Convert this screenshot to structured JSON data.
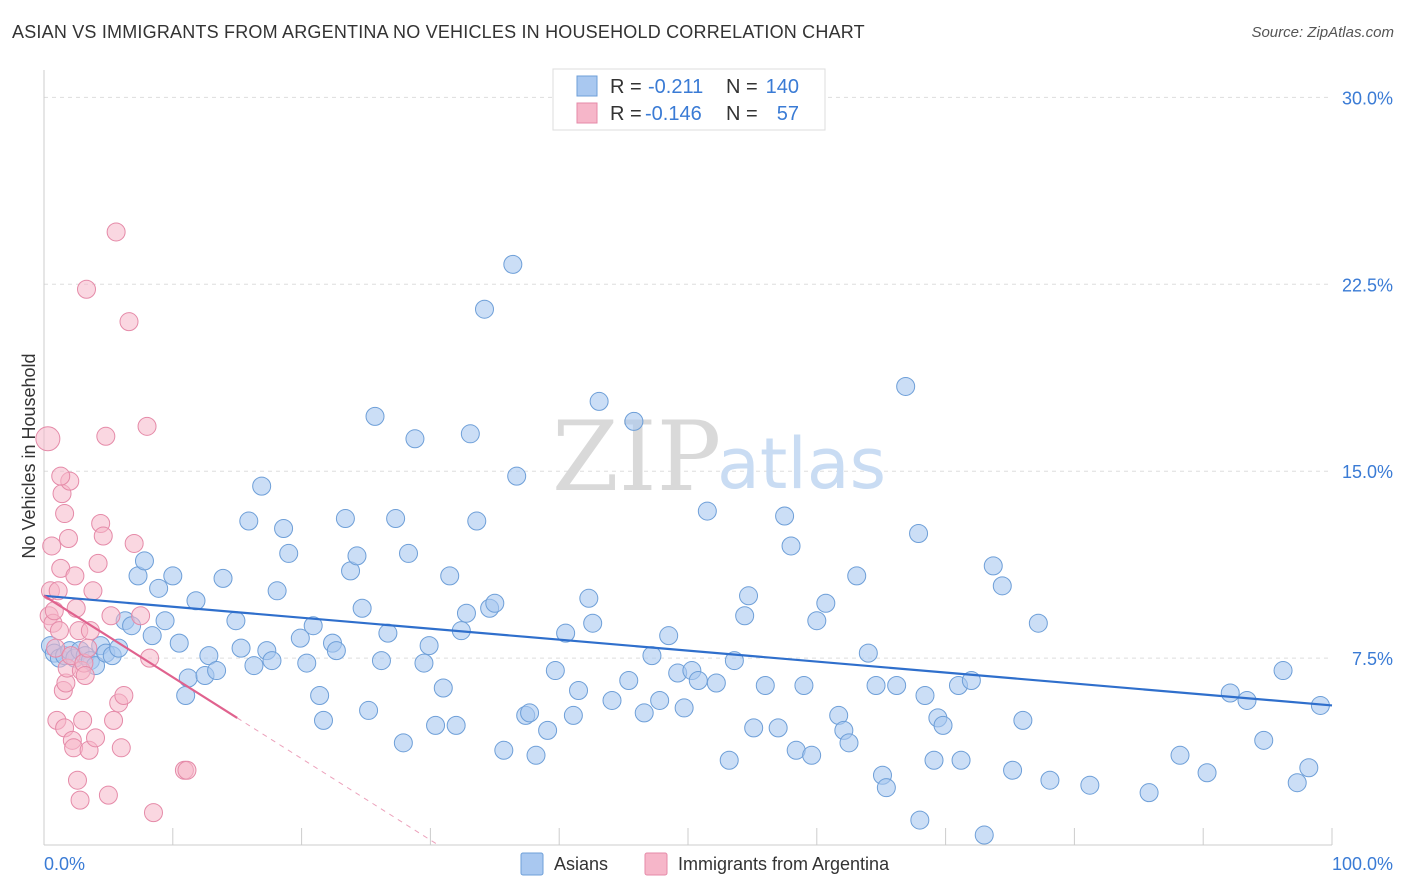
{
  "header": {
    "title": "ASIAN VS IMMIGRANTS FROM ARGENTINA NO VEHICLES IN HOUSEHOLD CORRELATION CHART",
    "source": "Source: ZipAtlas.com"
  },
  "watermark": {
    "zip": "ZIP",
    "atlas": "atlas"
  },
  "legend_box": {
    "asians": {
      "r_label": "R =",
      "r_value": "-0.211",
      "n_label": "N =",
      "n_value": "140"
    },
    "argentina": {
      "r_label": "R =",
      "r_value": "-0.146",
      "n_label": "N =",
      "n_value": "57"
    }
  },
  "colors": {
    "asians_fill": "#a9c8f0",
    "asians_stroke": "#6e9fd8",
    "asians_line": "#2f6fcc",
    "argentina_fill": "#f6b6c9",
    "argentina_stroke": "#e58aa8",
    "argentina_line": "#e0628e",
    "tick": "#3a7bd5",
    "grid": "#dddddd"
  },
  "chart_data": {
    "type": "scatter",
    "title": "ASIAN VS IMMIGRANTS FROM ARGENTINA NO VEHICLES IN HOUSEHOLD CORRELATION CHART",
    "ylabel": "No Vehicles in Household",
    "xlabel": "",
    "xlim": [
      0,
      100
    ],
    "ylim": [
      0,
      31.5
    ],
    "grid": true,
    "legend_position": "bottom",
    "y_ticks": [
      {
        "value": 7.5,
        "label": "7.5%"
      },
      {
        "value": 15.0,
        "label": "15.0%"
      },
      {
        "value": 22.5,
        "label": "22.5%"
      },
      {
        "value": 30.0,
        "label": "30.0%"
      }
    ],
    "x_tick_labels": {
      "min": "0.0%",
      "max": "100.0%"
    },
    "series": [
      {
        "name": "Asians",
        "trend": {
          "x0": 0,
          "y0": 10.0,
          "x1": 100,
          "y1": 5.6
        },
        "points": [
          [
            0.5,
            8.0
          ],
          [
            0.8,
            7.7
          ],
          [
            1.2,
            7.5
          ],
          [
            1.6,
            7.6
          ],
          [
            2.0,
            7.8
          ],
          [
            2.4,
            7.5
          ],
          [
            2.8,
            7.8
          ],
          [
            3.2,
            7.6
          ],
          [
            3.6,
            7.4
          ],
          [
            4.0,
            7.2
          ],
          [
            4.4,
            8.0
          ],
          [
            4.8,
            7.7
          ],
          [
            5.3,
            7.6
          ],
          [
            5.8,
            7.9
          ],
          [
            6.3,
            9.0
          ],
          [
            6.8,
            8.8
          ],
          [
            7.3,
            10.8
          ],
          [
            7.8,
            11.4
          ],
          [
            8.4,
            8.4
          ],
          [
            8.9,
            10.3
          ],
          [
            9.4,
            9.0
          ],
          [
            10.0,
            10.8
          ],
          [
            10.5,
            8.1
          ],
          [
            11.0,
            6.0
          ],
          [
            11.2,
            6.7
          ],
          [
            11.8,
            9.8
          ],
          [
            12.5,
            6.8
          ],
          [
            12.8,
            7.6
          ],
          [
            13.4,
            7.0
          ],
          [
            13.9,
            10.7
          ],
          [
            14.9,
            9.0
          ],
          [
            15.3,
            7.9
          ],
          [
            15.9,
            13.0
          ],
          [
            16.3,
            7.2
          ],
          [
            16.9,
            14.4
          ],
          [
            17.3,
            7.8
          ],
          [
            17.7,
            7.4
          ],
          [
            18.1,
            10.2
          ],
          [
            18.6,
            12.7
          ],
          [
            19.0,
            11.7
          ],
          [
            19.9,
            8.3
          ],
          [
            20.4,
            7.3
          ],
          [
            20.9,
            8.8
          ],
          [
            21.4,
            6.0
          ],
          [
            21.7,
            5.0
          ],
          [
            22.4,
            8.1
          ],
          [
            22.7,
            7.8
          ],
          [
            23.4,
            13.1
          ],
          [
            23.8,
            11.0
          ],
          [
            24.3,
            11.6
          ],
          [
            24.7,
            9.5
          ],
          [
            25.2,
            5.4
          ],
          [
            25.7,
            17.2
          ],
          [
            26.2,
            7.4
          ],
          [
            26.7,
            8.5
          ],
          [
            27.3,
            13.1
          ],
          [
            27.9,
            4.1
          ],
          [
            28.3,
            11.7
          ],
          [
            28.8,
            16.3
          ],
          [
            29.5,
            7.3
          ],
          [
            29.9,
            8.0
          ],
          [
            30.4,
            4.8
          ],
          [
            31.0,
            6.3
          ],
          [
            31.5,
            10.8
          ],
          [
            32.0,
            4.8
          ],
          [
            32.4,
            8.6
          ],
          [
            32.8,
            9.3
          ],
          [
            33.1,
            16.5
          ],
          [
            33.6,
            13.0
          ],
          [
            34.2,
            21.5
          ],
          [
            34.6,
            9.5
          ],
          [
            35.0,
            9.7
          ],
          [
            35.7,
            3.8
          ],
          [
            36.4,
            23.3
          ],
          [
            36.7,
            14.8
          ],
          [
            37.4,
            5.2
          ],
          [
            37.7,
            5.3
          ],
          [
            38.2,
            3.6
          ],
          [
            39.1,
            4.6
          ],
          [
            39.7,
            7.0
          ],
          [
            40.5,
            8.5
          ],
          [
            41.1,
            5.2
          ],
          [
            41.5,
            6.2
          ],
          [
            42.3,
            9.9
          ],
          [
            42.6,
            8.9
          ],
          [
            43.1,
            17.8
          ],
          [
            44.1,
            5.8
          ],
          [
            45.4,
            6.6
          ],
          [
            45.8,
            17.0
          ],
          [
            46.6,
            5.3
          ],
          [
            47.2,
            7.6
          ],
          [
            47.8,
            5.8
          ],
          [
            48.5,
            8.4
          ],
          [
            49.2,
            6.9
          ],
          [
            49.7,
            5.5
          ],
          [
            50.3,
            7.0
          ],
          [
            50.8,
            6.6
          ],
          [
            51.5,
            13.4
          ],
          [
            52.2,
            6.5
          ],
          [
            53.2,
            3.4
          ],
          [
            53.6,
            7.4
          ],
          [
            54.4,
            9.2
          ],
          [
            54.7,
            10.0
          ],
          [
            55.1,
            4.7
          ],
          [
            56.0,
            6.4
          ],
          [
            57.0,
            4.7
          ],
          [
            57.5,
            13.2
          ],
          [
            58.0,
            12.0
          ],
          [
            58.4,
            3.8
          ],
          [
            59.0,
            6.4
          ],
          [
            59.6,
            3.6
          ],
          [
            60.0,
            9.0
          ],
          [
            60.7,
            9.7
          ],
          [
            61.7,
            5.2
          ],
          [
            62.1,
            4.6
          ],
          [
            62.5,
            4.1
          ],
          [
            63.1,
            10.8
          ],
          [
            64.0,
            7.7
          ],
          [
            64.6,
            6.4
          ],
          [
            65.1,
            2.8
          ],
          [
            65.4,
            2.3
          ],
          [
            66.2,
            6.4
          ],
          [
            66.9,
            18.4
          ],
          [
            67.9,
            12.5
          ],
          [
            68.0,
            1.0
          ],
          [
            68.4,
            6.0
          ],
          [
            69.1,
            3.4
          ],
          [
            69.4,
            5.1
          ],
          [
            69.8,
            4.8
          ],
          [
            71.0,
            6.4
          ],
          [
            71.2,
            3.4
          ],
          [
            72.0,
            6.6
          ],
          [
            73.0,
            0.4
          ],
          [
            73.7,
            11.2
          ],
          [
            74.4,
            10.4
          ],
          [
            75.2,
            3.0
          ],
          [
            76.0,
            5.0
          ],
          [
            77.2,
            8.9
          ],
          [
            78.1,
            2.6
          ],
          [
            81.2,
            2.4
          ],
          [
            85.8,
            2.1
          ],
          [
            88.2,
            3.6
          ],
          [
            90.3,
            2.9
          ],
          [
            92.1,
            6.1
          ],
          [
            93.4,
            5.8
          ],
          [
            94.7,
            4.2
          ],
          [
            96.2,
            7.0
          ],
          [
            97.3,
            2.5
          ],
          [
            98.2,
            3.1
          ],
          [
            99.1,
            5.6
          ]
        ]
      },
      {
        "name": "Immigrants from Argentina",
        "trend": {
          "x0": 0,
          "y0": 10.0,
          "x1": 15,
          "y1": 5.1
        },
        "points": [
          [
            0.3,
            16.3
          ],
          [
            0.4,
            9.2
          ],
          [
            0.5,
            10.2
          ],
          [
            0.6,
            12.0
          ],
          [
            0.7,
            8.9
          ],
          [
            0.8,
            9.4
          ],
          [
            0.9,
            7.9
          ],
          [
            1.0,
            5.0
          ],
          [
            1.1,
            10.2
          ],
          [
            1.2,
            8.6
          ],
          [
            1.3,
            11.1
          ],
          [
            1.4,
            14.1
          ],
          [
            1.5,
            6.2
          ],
          [
            1.6,
            4.7
          ],
          [
            1.7,
            6.5
          ],
          [
            1.8,
            7.1
          ],
          [
            1.9,
            12.3
          ],
          [
            2.0,
            14.6
          ],
          [
            2.1,
            7.6
          ],
          [
            2.2,
            4.2
          ],
          [
            2.3,
            3.9
          ],
          [
            2.4,
            10.8
          ],
          [
            2.5,
            9.5
          ],
          [
            2.6,
            2.6
          ],
          [
            2.7,
            8.6
          ],
          [
            2.8,
            1.8
          ],
          [
            2.9,
            7.0
          ],
          [
            3.0,
            5.0
          ],
          [
            3.1,
            7.3
          ],
          [
            3.2,
            6.8
          ],
          [
            3.3,
            22.3
          ],
          [
            3.4,
            7.9
          ],
          [
            3.5,
            3.8
          ],
          [
            3.6,
            8.6
          ],
          [
            3.8,
            10.2
          ],
          [
            4.0,
            4.3
          ],
          [
            4.2,
            11.3
          ],
          [
            4.4,
            12.9
          ],
          [
            4.6,
            12.4
          ],
          [
            4.8,
            16.4
          ],
          [
            5.0,
            2.0
          ],
          [
            5.2,
            9.2
          ],
          [
            5.4,
            5.0
          ],
          [
            5.6,
            24.6
          ],
          [
            5.8,
            5.7
          ],
          [
            6.0,
            3.9
          ],
          [
            6.2,
            6.0
          ],
          [
            6.6,
            21.0
          ],
          [
            7.0,
            12.1
          ],
          [
            7.5,
            9.2
          ],
          [
            8.0,
            16.8
          ],
          [
            8.2,
            7.5
          ],
          [
            8.5,
            1.3
          ],
          [
            10.9,
            3.0
          ],
          [
            11.1,
            3.0
          ],
          [
            1.3,
            14.8
          ],
          [
            1.6,
            13.3
          ]
        ]
      }
    ]
  },
  "bottom_legend": {
    "asians": "Asians",
    "argentina": "Immigrants from Argentina"
  }
}
